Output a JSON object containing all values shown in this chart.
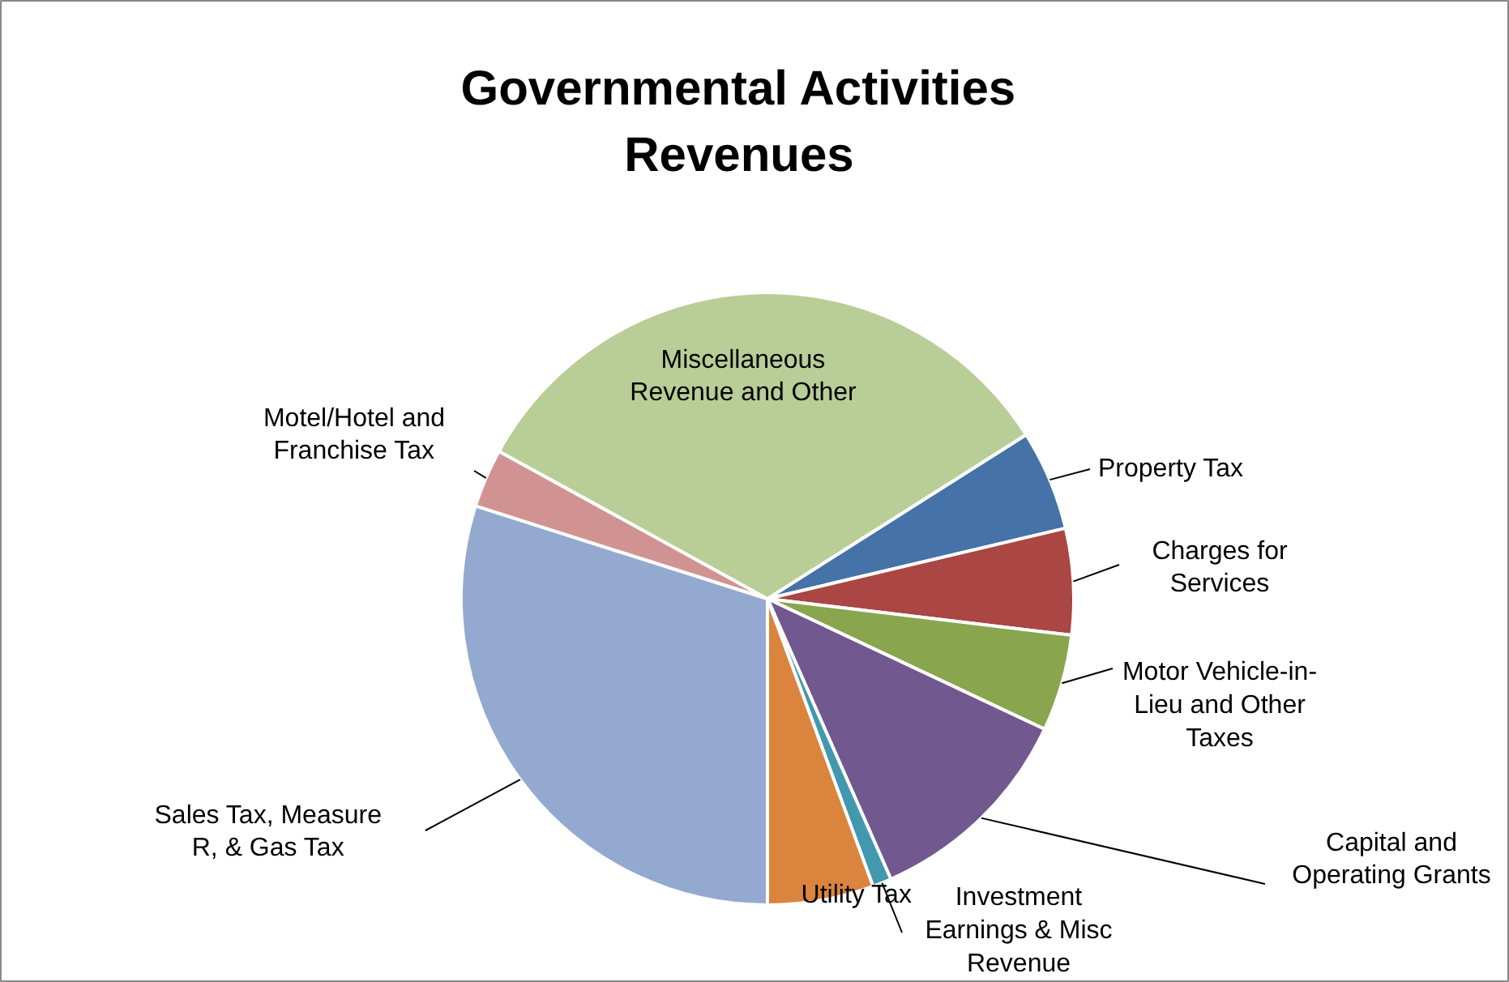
{
  "chart_data": {
    "type": "pie",
    "title": "Governmental Activities Revenues",
    "categories": [
      "Property Tax",
      "Charges for Services",
      "Motor Vehicle-in-Lieu and Other Taxes",
      "Capital and Operating Grants",
      "Investment Earnings & Misc Revenue",
      "Utility Tax",
      "Sales Tax, Measure R, & Gas Tax",
      "Motel/Hotel and Franchise Tax",
      "Miscellaneous Revenue and Other"
    ],
    "values": [
      5.3,
      5.6,
      5.1,
      11.4,
      1.0,
      5.6,
      29.9,
      3.1,
      33.0
    ],
    "colors": [
      "#4572a7",
      "#aa4643",
      "#89a54e",
      "#71588f",
      "#4198af",
      "#db843d",
      "#93a9cf",
      "#d19392",
      "#b9cd96"
    ]
  }
}
